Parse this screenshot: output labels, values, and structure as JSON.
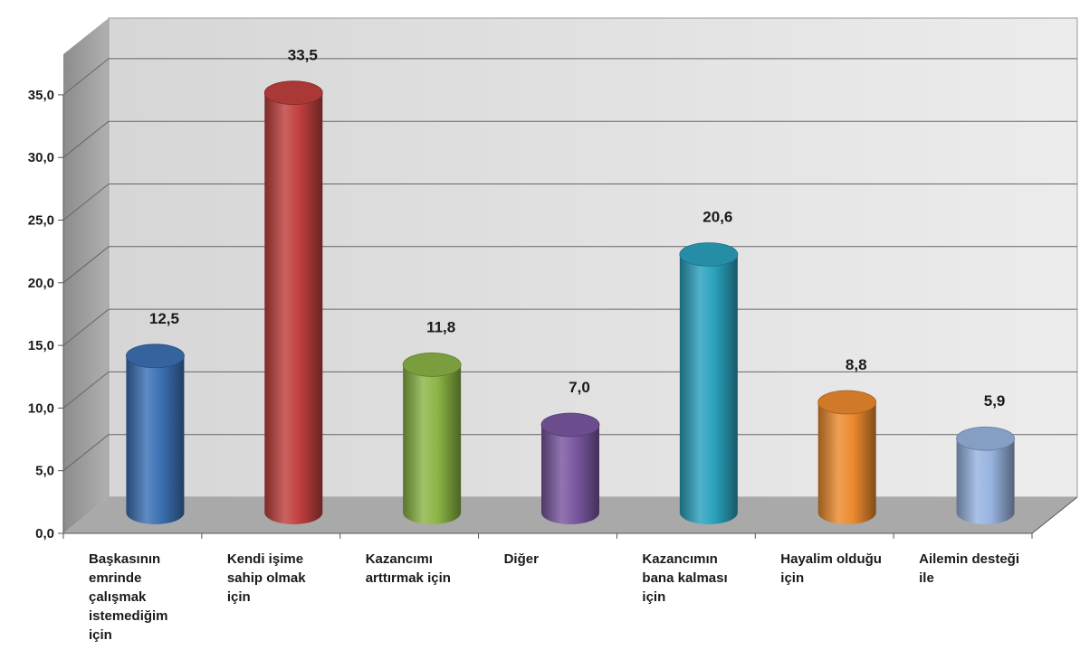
{
  "chart_data": {
    "type": "bar",
    "style": "3d-cylinder",
    "title": "",
    "xlabel": "",
    "ylabel": "",
    "ylim": [
      0,
      35
    ],
    "yticks": [
      "0,0",
      "5,0",
      "10,0",
      "15,0",
      "20,0",
      "25,0",
      "30,0",
      "35,0"
    ],
    "ytick_values": [
      0,
      5,
      10,
      15,
      20,
      25,
      30,
      35
    ],
    "grid": true,
    "legend": "none",
    "categories": [
      "Başkasının\nemrinde\nçalışmak\nistemediğim\niçin",
      "Kendi işime\nsahip olmak\niçin",
      "Kazancımı\narttırmak için",
      "Diğer",
      "Kazancımın\nbana kalması\niçin",
      "Hayalim olduğu\niçin",
      "Ailemin desteği\nile"
    ],
    "values": [
      12.5,
      33.5,
      11.8,
      7.0,
      20.6,
      8.8,
      5.9
    ],
    "value_labels": [
      "12,5",
      "33,5",
      "11,8",
      "7,0",
      "20,6",
      "8,8",
      "5,9"
    ],
    "colors": [
      "#3b70b4",
      "#c0403e",
      "#8bb445",
      "#7a57a0",
      "#2aa1bd",
      "#ec8a2f",
      "#97b3df"
    ]
  }
}
